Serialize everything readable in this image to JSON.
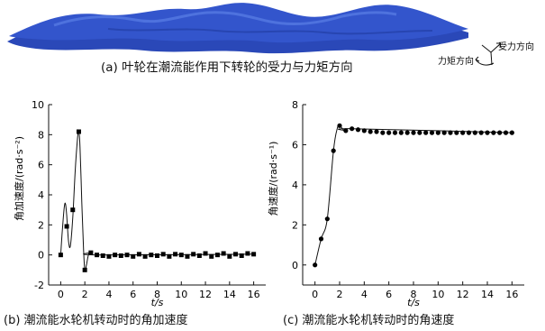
{
  "top_panel": {
    "caption": "(a) 叶轮在潮流能作用下转轮的受力与力矩方向",
    "force_label": "受力方向",
    "torque_label": "力矩方向",
    "surface_color": "#3052c8"
  },
  "chart_data": [
    {
      "type": "line",
      "caption": "(b) 潮流能水轮机转动时的角加速度",
      "xlabel": "t/s",
      "ylabel": "角加速度/(rad·s⁻²)",
      "xlim": [
        -1,
        17
      ],
      "ylim": [
        -2,
        10
      ],
      "xticks": [
        0,
        2,
        4,
        6,
        8,
        10,
        12,
        14,
        16
      ],
      "yticks": [
        -2,
        0,
        2,
        4,
        6,
        8,
        10
      ],
      "series": [
        {
          "marker": "square",
          "color": "#000000",
          "points": [
            [
              0,
              0
            ],
            [
              0.5,
              1.9
            ],
            [
              1,
              3.0
            ],
            [
              1.5,
              8.2
            ],
            [
              2,
              -1.0
            ],
            [
              2.5,
              0.15
            ],
            [
              3,
              0.0
            ],
            [
              3.5,
              -0.05
            ],
            [
              4,
              -0.1
            ],
            [
              4.5,
              0.0
            ],
            [
              5,
              -0.05
            ],
            [
              5.5,
              0.0
            ],
            [
              6,
              -0.1
            ],
            [
              6.5,
              0.05
            ],
            [
              7,
              -0.1
            ],
            [
              7.5,
              0.0
            ],
            [
              8,
              -0.05
            ],
            [
              8.5,
              0.05
            ],
            [
              9,
              -0.1
            ],
            [
              9.5,
              0.05
            ],
            [
              10,
              0.0
            ],
            [
              10.5,
              -0.1
            ],
            [
              11,
              0.05
            ],
            [
              11.5,
              -0.05
            ],
            [
              12,
              0.1
            ],
            [
              12.5,
              -0.1
            ],
            [
              13,
              0.0
            ],
            [
              13.5,
              0.1
            ],
            [
              14,
              -0.1
            ],
            [
              14.5,
              0.05
            ],
            [
              15,
              -0.05
            ],
            [
              15.5,
              0.1
            ],
            [
              16,
              0.05
            ]
          ],
          "curve": [
            [
              0,
              0
            ],
            [
              0.15,
              1.8
            ],
            [
              0.3,
              3.2
            ],
            [
              0.4,
              3.4
            ],
            [
              0.5,
              2.6
            ],
            [
              0.65,
              0.9
            ],
            [
              0.8,
              0.6
            ],
            [
              1,
              2.5
            ],
            [
              1.2,
              5.6
            ],
            [
              1.4,
              7.8
            ],
            [
              1.5,
              8.2
            ],
            [
              1.6,
              7.2
            ],
            [
              1.75,
              3.5
            ],
            [
              1.9,
              0.3
            ],
            [
              2,
              -1.0
            ],
            [
              2.15,
              -0.6
            ],
            [
              2.3,
              0.0
            ],
            [
              2.5,
              0.15
            ],
            [
              3,
              0.0
            ],
            [
              16,
              0.05
            ]
          ]
        }
      ]
    },
    {
      "type": "line",
      "caption": "(c) 潮流能水轮机转动时的角速度",
      "xlabel": "t/s",
      "ylabel": "角速度/(rad·s⁻¹)",
      "xlim": [
        -1,
        17
      ],
      "ylim": [
        -1,
        8
      ],
      "xticks": [
        0,
        2,
        4,
        6,
        8,
        10,
        12,
        14,
        16
      ],
      "yticks": [
        0,
        2,
        4,
        6,
        8
      ],
      "series": [
        {
          "marker": "circle",
          "color": "#000000",
          "points": [
            [
              0,
              0
            ],
            [
              0.5,
              1.3
            ],
            [
              1,
              2.3
            ],
            [
              1.5,
              5.7
            ],
            [
              2,
              6.95
            ],
            [
              2.5,
              6.7
            ],
            [
              3,
              6.8
            ],
            [
              3.5,
              6.75
            ],
            [
              4,
              6.7
            ],
            [
              4.5,
              6.65
            ],
            [
              5,
              6.65
            ],
            [
              5.5,
              6.6
            ],
            [
              6,
              6.6
            ],
            [
              6.5,
              6.6
            ],
            [
              7,
              6.6
            ],
            [
              7.5,
              6.6
            ],
            [
              8,
              6.6
            ],
            [
              8.5,
              6.6
            ],
            [
              9,
              6.6
            ],
            [
              9.5,
              6.6
            ],
            [
              10,
              6.6
            ],
            [
              10.5,
              6.6
            ],
            [
              11,
              6.6
            ],
            [
              11.5,
              6.6
            ],
            [
              12,
              6.6
            ],
            [
              12.5,
              6.6
            ],
            [
              13,
              6.6
            ],
            [
              13.5,
              6.6
            ],
            [
              14,
              6.6
            ],
            [
              14.5,
              6.6
            ],
            [
              15,
              6.6
            ],
            [
              15.5,
              6.6
            ],
            [
              16,
              6.6
            ]
          ],
          "curve": [
            [
              0,
              0
            ],
            [
              0.5,
              1.3
            ],
            [
              1,
              2.3
            ],
            [
              1.5,
              5.7
            ],
            [
              1.8,
              6.8
            ],
            [
              2,
              6.95
            ],
            [
              2.3,
              6.75
            ],
            [
              2.5,
              6.7
            ],
            [
              3,
              6.8
            ],
            [
              16,
              6.6
            ]
          ]
        }
      ]
    }
  ]
}
